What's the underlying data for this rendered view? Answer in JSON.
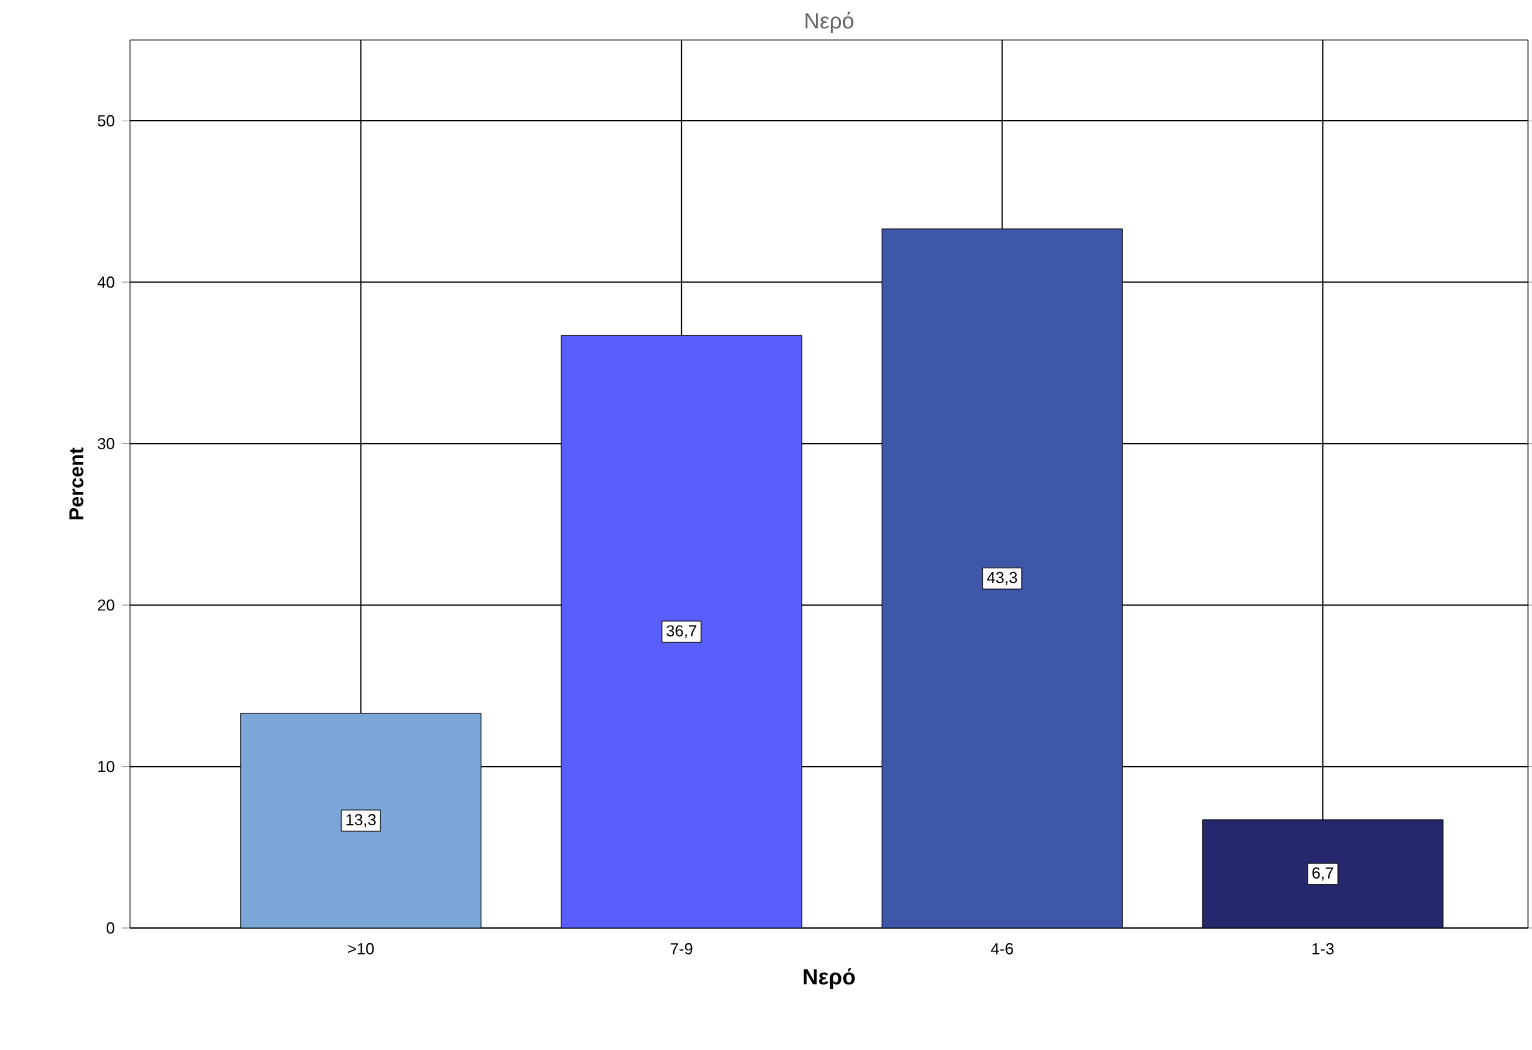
{
  "chart_data": {
    "type": "bar",
    "title": "Νερό",
    "xlabel": "Νερό",
    "ylabel": "Percent",
    "categories": [
      ">10",
      "7-9",
      "4-6",
      "1-3"
    ],
    "values": [
      13.3,
      36.7,
      43.3,
      6.7
    ],
    "value_labels": [
      "13,3",
      "36,7",
      "43,3",
      "6,7"
    ],
    "colors": [
      "#7ba7d8",
      "#5a5eff",
      "#3e57a8",
      "#26286e"
    ],
    "ylim": [
      0,
      55
    ],
    "yticks": [
      0,
      10,
      20,
      30,
      40,
      50
    ],
    "grid": true
  }
}
